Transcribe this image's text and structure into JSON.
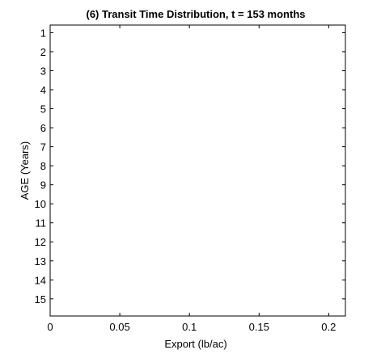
{
  "chart_data": {
    "type": "line",
    "title": "(6) Transit Time Distribution, t = 153 months",
    "xlabel": "Export (lb/ac)",
    "ylabel": "AGE (Years)",
    "xlim": [
      0,
      0.212
    ],
    "ylim": [
      0.6,
      15.9
    ],
    "y_reversed": true,
    "x_ticks": [
      0,
      0.05,
      0.1,
      0.15,
      0.2
    ],
    "x_tick_labels": [
      "0",
      "0.05",
      "0.1",
      "0.15",
      "0.2"
    ],
    "y_ticks": [
      1,
      2,
      3,
      4,
      5,
      6,
      7,
      8,
      9,
      10,
      11,
      12,
      13,
      14,
      15
    ],
    "y_tick_labels": [
      "1",
      "2",
      "3",
      "4",
      "5",
      "6",
      "7",
      "8",
      "9",
      "10",
      "11",
      "12",
      "13",
      "14",
      "15"
    ],
    "grid": false,
    "legend": "none",
    "series": [],
    "colors": {
      "background": "#ffffff",
      "axes": "#000000"
    }
  }
}
